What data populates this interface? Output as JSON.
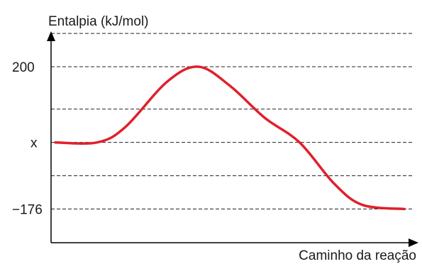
{
  "chart_data": {
    "type": "line",
    "ylabel": "Entalpia (kJ/mol)",
    "xlabel": "Caminho da reação",
    "ytick_labels": [
      {
        "value": 200,
        "label": "200"
      },
      {
        "value": 0,
        "label": "x"
      },
      {
        "value": -176,
        "label": "−176"
      }
    ],
    "gridlines": [
      -176,
      -88,
      0,
      88,
      200,
      288
    ],
    "ylim": [
      -265,
      320
    ],
    "xlim": [
      0,
      100
    ],
    "grid": true,
    "series": [
      {
        "color": "#e0202b",
        "points": [
          {
            "x": 0,
            "y": 0
          },
          {
            "x": 12,
            "y": 0
          },
          {
            "x": 20,
            "y": 40
          },
          {
            "x": 32,
            "y": 160
          },
          {
            "x": 41,
            "y": 200
          },
          {
            "x": 50,
            "y": 150
          },
          {
            "x": 60,
            "y": 65
          },
          {
            "x": 70,
            "y": 0
          },
          {
            "x": 80,
            "y": -110
          },
          {
            "x": 88,
            "y": -165
          },
          {
            "x": 100,
            "y": -176
          }
        ]
      }
    ]
  }
}
